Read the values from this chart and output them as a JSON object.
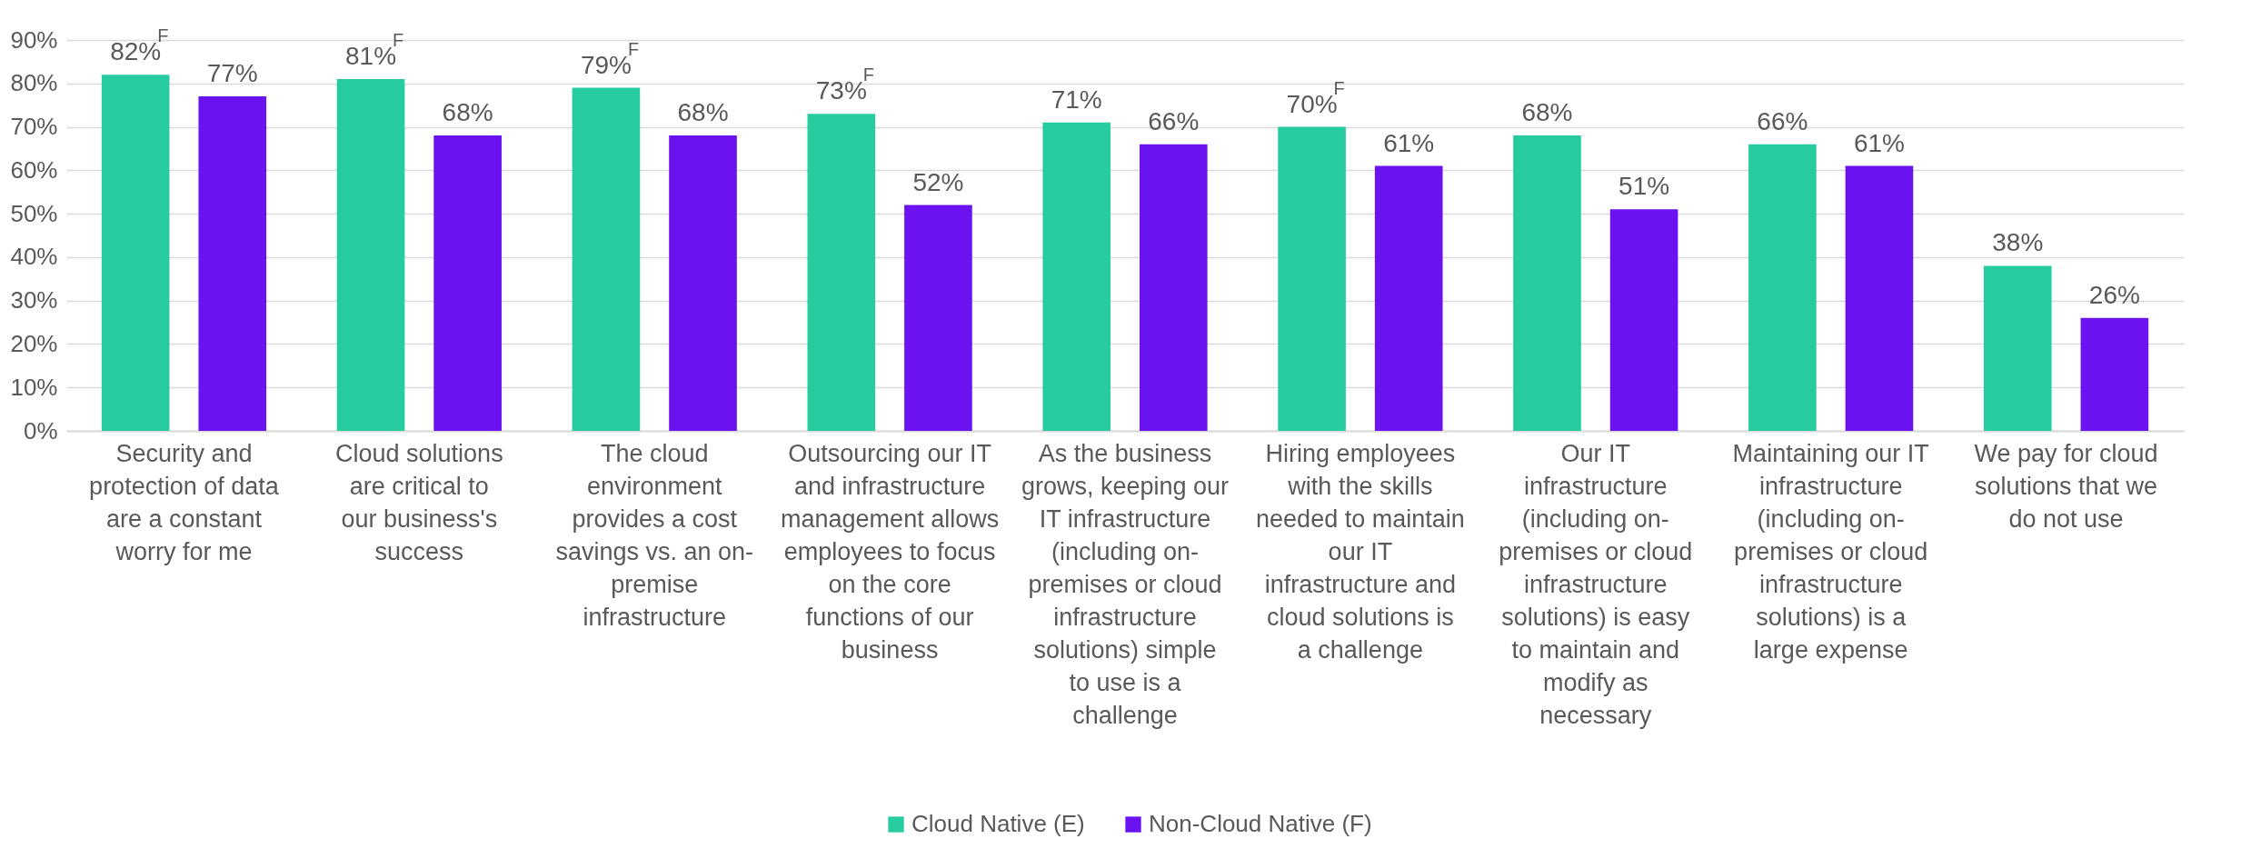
{
  "chart_data": {
    "type": "bar",
    "categories": [
      "Security and protection of data are a constant worry for me",
      "Cloud solutions are critical to our business's success",
      "The cloud environment provides a cost savings vs. an on-premise infrastructure",
      "Outsourcing our IT and infrastructure management allows employees to focus on the core functions of our business",
      "As the business grows, keeping our IT infrastructure (including on-premises or cloud infrastructure solutions) simple to use is a challenge",
      "Hiring employees with the skills needed to maintain our IT infrastructure and cloud solutions is a challenge",
      "Our IT infrastructure (including on-premises or cloud infrastructure solutions) is easy to maintain and modify as necessary",
      "Maintaining our IT infrastructure (including on-premises or cloud infrastructure solutions) is a large expense",
      "We pay for cloud solutions that we do not use"
    ],
    "series": [
      {
        "name": "Cloud Native (E)",
        "color": "#26cca0",
        "values": [
          82,
          81,
          79,
          73,
          71,
          70,
          68,
          66,
          38
        ],
        "value_labels": [
          "82%$^{F}$",
          "81%$^{F}$",
          "79%$^{F}$",
          "73%$^{F}$",
          "71%",
          "70%$^{F}$",
          "68%",
          "66%",
          "38%"
        ]
      },
      {
        "name": "Non-Cloud Native (F)",
        "color": "#6a12f0",
        "values": [
          77,
          68,
          68,
          52,
          66,
          61,
          51,
          61,
          26
        ],
        "value_labels": [
          "77%",
          "68%",
          "68%",
          "52%",
          "66%",
          "61%",
          "51%",
          "61%",
          "26%"
        ]
      }
    ],
    "ylim": [
      0,
      90
    ],
    "yticks": [
      {
        "value": 0,
        "label": "0%"
      },
      {
        "value": 10,
        "label": "10%"
      },
      {
        "value": 20,
        "label": "20%"
      },
      {
        "value": 30,
        "label": "30%"
      },
      {
        "value": 40,
        "label": "40%"
      },
      {
        "value": 50,
        "label": "50%"
      },
      {
        "value": 60,
        "label": "60%"
      },
      {
        "value": 70,
        "label": "70%"
      },
      {
        "value": 80,
        "label": "80%"
      },
      {
        "value": 90,
        "label": "90%"
      }
    ],
    "grid": "y",
    "legend": "bottom"
  }
}
